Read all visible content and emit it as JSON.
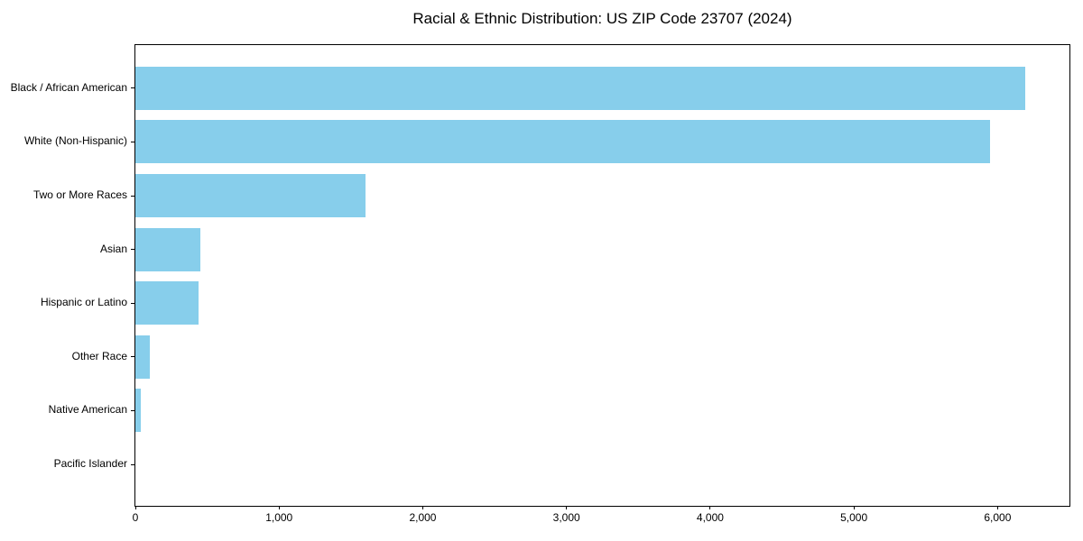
{
  "chart_data": {
    "type": "bar",
    "orientation": "horizontal",
    "title": "Racial & Ethnic Distribution: US ZIP Code 23707 (2024)",
    "categories": [
      "Black / African American",
      "White (Non-Hispanic)",
      "Two or More Races",
      "Asian",
      "Hispanic or Latino",
      "Other Race",
      "Native American",
      "Pacific Islander"
    ],
    "values": [
      6190,
      5950,
      1600,
      450,
      440,
      100,
      40,
      0
    ],
    "xlabel": "",
    "ylabel": "",
    "xlim": [
      0,
      6500
    ],
    "xticks": [
      0,
      1000,
      2000,
      3000,
      4000,
      5000,
      6000
    ],
    "xtick_labels": [
      "0",
      "1,000",
      "2,000",
      "3,000",
      "4,000",
      "5,000",
      "6,000"
    ],
    "bar_color": "#87CEEB",
    "background_color": "#FFFFFF",
    "spine_color": "#000000",
    "grid": false,
    "legend": null
  }
}
